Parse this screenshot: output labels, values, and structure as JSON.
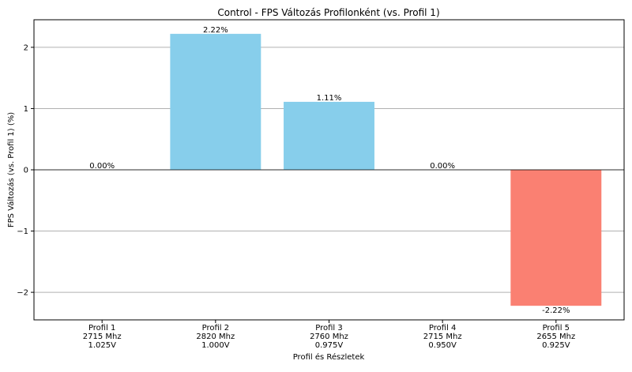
{
  "chart_data": {
    "type": "bar",
    "title": "Control - FPS Változás Profilonként (vs. Profil 1)",
    "xlabel": "Profil és Részletek",
    "ylabel": "FPS Változás (vs. Profil 1) (%)",
    "categories": [
      [
        "Profil 1",
        "2715 Mhz",
        "1.025V"
      ],
      [
        "Profil 2",
        "2820 Mhz",
        "1.000V"
      ],
      [
        "Profil 3",
        "2760 Mhz",
        "0.975V"
      ],
      [
        "Profil 4",
        "2715 Mhz",
        "0.950V"
      ],
      [
        "Profil 5",
        "2655 Mhz",
        "0.925V"
      ]
    ],
    "values": [
      0.0,
      2.22,
      1.11,
      0.0,
      -2.22
    ],
    "data_labels": [
      "0.00%",
      "2.22%",
      "1.11%",
      "0.00%",
      "-2.22%"
    ],
    "ylim": [
      -2.45,
      2.45
    ],
    "yticks": [
      -2,
      -1,
      0,
      1,
      2
    ],
    "ytick_labels": [
      "−2",
      "−1",
      "0",
      "1",
      "2"
    ],
    "grid": "horizontal",
    "colors": {
      "positive": "#87CEEB",
      "negative": "#FA8072",
      "grid": "#b0b0b0",
      "zero_line": "#000000"
    }
  }
}
